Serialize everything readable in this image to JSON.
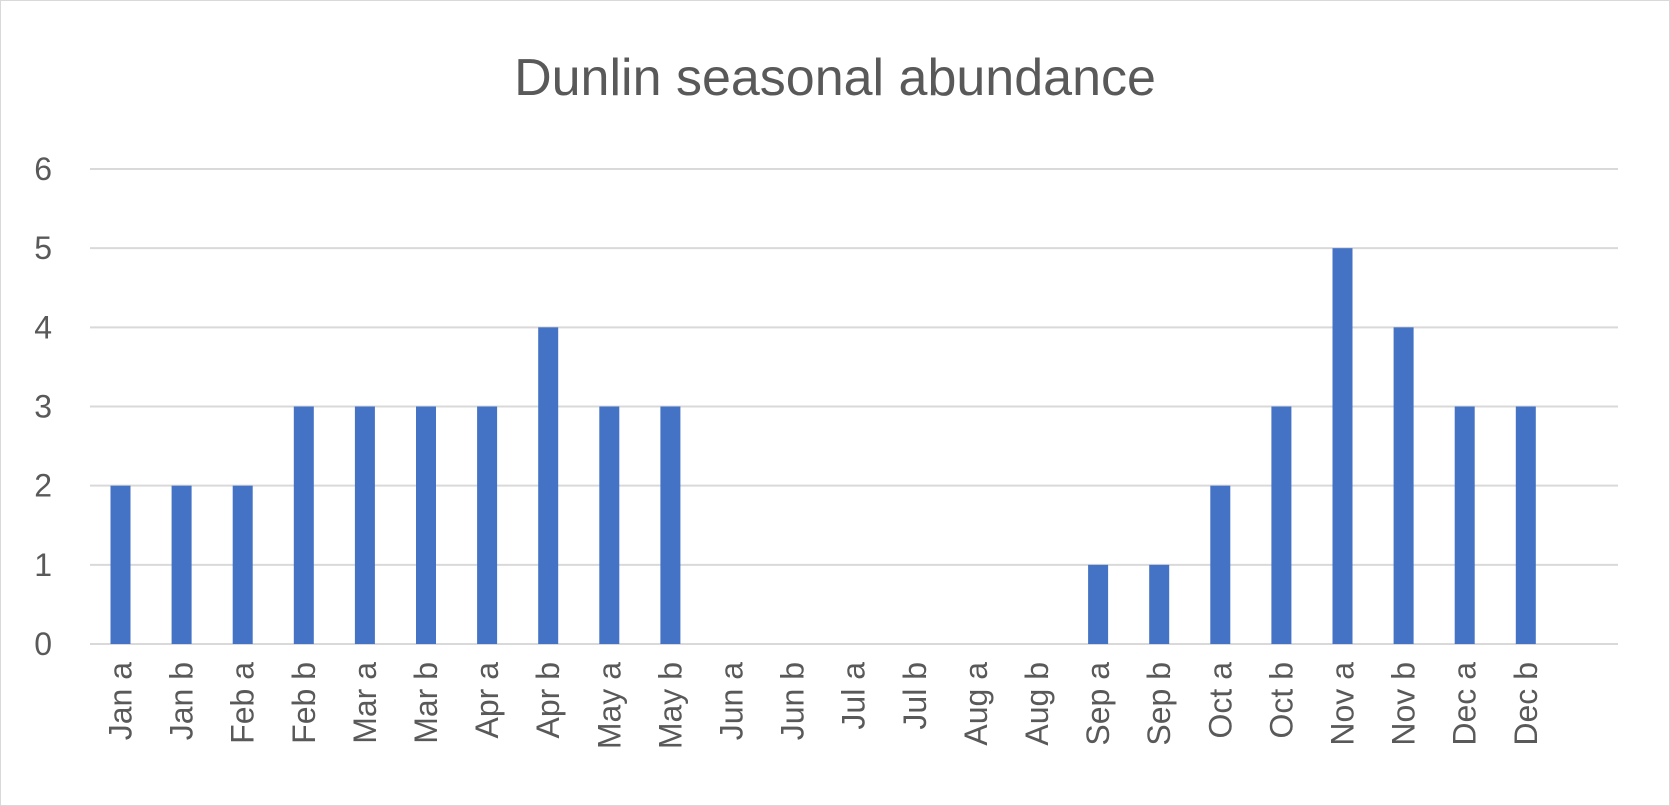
{
  "chart_data": {
    "type": "bar",
    "title": "Dunlin seasonal abundance",
    "xlabel": "",
    "ylabel": "",
    "categories": [
      "Jan a",
      "Jan b",
      "Feb a",
      "Feb b",
      "Mar a",
      "Mar b",
      "Apr a",
      "Apr b",
      "May a",
      "May b",
      "Jun a",
      "Jun b",
      "Jul a",
      "Jul b",
      "Aug a",
      "Aug b",
      "Sep a",
      "Sep b",
      "Oct a",
      "Oct b",
      "Nov a",
      "Nov b",
      "Dec a",
      "Dec b"
    ],
    "values": [
      2,
      2,
      2,
      3,
      3,
      3,
      3,
      4,
      3,
      3,
      0,
      0,
      0,
      0,
      0,
      0,
      1,
      1,
      2,
      3,
      5,
      4,
      3,
      3
    ],
    "yticks": [
      "0",
      "1",
      "2",
      "3",
      "4",
      "5",
      "6"
    ],
    "ylim": [
      0,
      6
    ],
    "grid": true,
    "legend": "none",
    "bar_color": "#4472c4"
  }
}
